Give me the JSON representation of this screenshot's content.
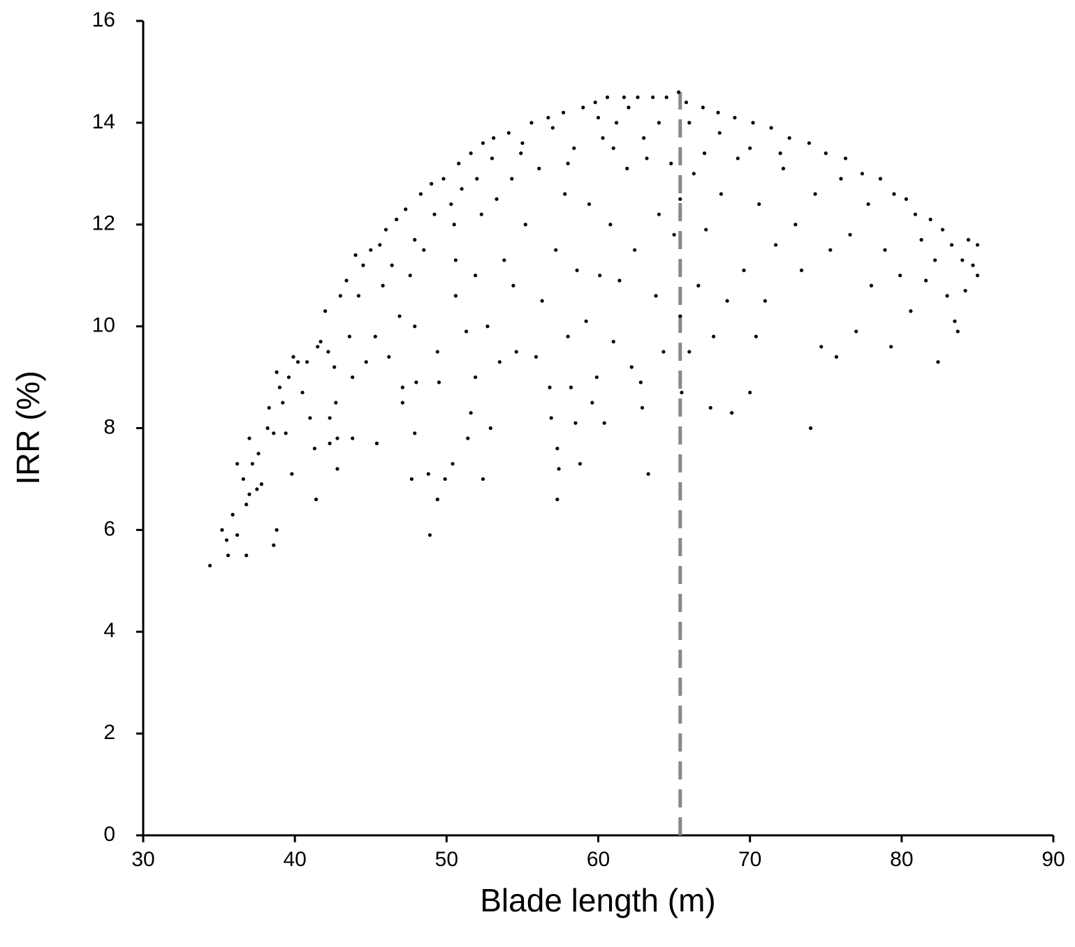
{
  "chart_data": {
    "type": "scatter",
    "xlabel": "Blade length (m)",
    "ylabel": "IRR (%)",
    "xlim": [
      30,
      90
    ],
    "xticks": [
      30,
      40,
      50,
      60,
      70,
      80,
      90
    ],
    "ylim": [
      0,
      16
    ],
    "yticks": [
      0,
      2,
      4,
      6,
      8,
      10,
      12,
      14,
      16
    ],
    "grid": false,
    "reference_line": {
      "x": 65.4,
      "y": [
        0,
        14.6
      ],
      "color": "#888888",
      "style": "dashed"
    },
    "series": [
      {
        "color": "#000000",
        "x": [
          34.4,
          35.2,
          35.5,
          35.6,
          35.9,
          36.2,
          36.2,
          36.6,
          36.8,
          36.8,
          37.0,
          37.0,
          37.2,
          37.5,
          37.6,
          37.8,
          38.2,
          38.3,
          38.6,
          38.6,
          38.8,
          38.8,
          39.0,
          39.2,
          39.4,
          39.6,
          39.8,
          39.9,
          40.2,
          40.5,
          40.8,
          41.0,
          41.3,
          41.4,
          41.5,
          41.7,
          42.0,
          42.2,
          42.3,
          42.3,
          42.6,
          42.7,
          42.8,
          42.8,
          43.0,
          43.4,
          43.6,
          43.8,
          43.8,
          44.0,
          44.2,
          44.5,
          44.7,
          45.0,
          45.3,
          45.4,
          45.6,
          45.8,
          46.0,
          46.2,
          46.4,
          46.7,
          46.9,
          47.1,
          47.1,
          47.3,
          47.6,
          47.7,
          47.9,
          47.9,
          47.9,
          48.0,
          48.3,
          48.5,
          48.8,
          48.9,
          49.0,
          49.2,
          49.4,
          49.4,
          49.5,
          49.8,
          49.9,
          50.3,
          50.4,
          50.5,
          50.6,
          50.6,
          50.8,
          51.0,
          51.3,
          51.4,
          51.6,
          51.6,
          51.9,
          51.9,
          52.3,
          52.4,
          52.4,
          52.7,
          52.9,
          53.1,
          53.3,
          53.5,
          53.8,
          54.1,
          54.3,
          54.4,
          54.6,
          54.9,
          55.2,
          55.6,
          55.9,
          56.1,
          56.3,
          56.7,
          56.8,
          56.9,
          57.2,
          57.3,
          57.3,
          57.4,
          57.7,
          57.8,
          58.0,
          58.2,
          58.4,
          58.5,
          58.6,
          58.8,
          59.0,
          59.2,
          59.4,
          59.6,
          59.8,
          59.9,
          60.1,
          60.3,
          60.4,
          60.6,
          60.8,
          61.0,
          61.2,
          61.4,
          61.7,
          61.9,
          62.2,
          62.4,
          62.6,
          62.8,
          62.9,
          63.2,
          63.3,
          63.6,
          63.8,
          64.0,
          64.3,
          64.5,
          64.8,
          65.0,
          65.3,
          65.4,
          65.4,
          65.5,
          65.8,
          66.0,
          66.3,
          66.6,
          66.9,
          67.1,
          67.4,
          67.6,
          67.9,
          68.1,
          68.5,
          68.8,
          69.0,
          69.2,
          69.6,
          70.0,
          70.2,
          70.4,
          70.6,
          71.0,
          71.4,
          71.7,
          72.2,
          72.6,
          73.0,
          73.4,
          73.9,
          74.0,
          74.3,
          74.7,
          75.0,
          75.3,
          75.7,
          76.0,
          76.3,
          76.6,
          77.0,
          77.4,
          77.8,
          78.0,
          78.6,
          78.9,
          79.3,
          79.5,
          79.9,
          80.3,
          80.6,
          80.9,
          81.3,
          81.6,
          81.9,
          82.2,
          82.4,
          82.7,
          83.0,
          83.3,
          83.5,
          83.7,
          84.0,
          84.2,
          84.4,
          84.7,
          85.0,
          85.0,
          55.0,
          57.0,
          60.0,
          62.0,
          64.0,
          66.0,
          68.0,
          70.0,
          58.0,
          61.0,
          63.0,
          67.0,
          72.0,
          53.0,
          52.0
        ],
        "y": [
          5.3,
          6.0,
          5.8,
          5.5,
          6.3,
          5.9,
          7.3,
          7.0,
          6.5,
          5.5,
          7.8,
          6.7,
          7.3,
          6.8,
          7.5,
          6.9,
          8.0,
          8.4,
          7.9,
          5.7,
          6.0,
          9.1,
          8.8,
          8.5,
          7.9,
          9.0,
          7.1,
          9.4,
          9.3,
          8.7,
          9.3,
          8.2,
          7.6,
          6.6,
          9.6,
          9.7,
          10.3,
          9.5,
          8.2,
          7.7,
          9.2,
          8.5,
          7.2,
          7.8,
          10.6,
          10.9,
          9.8,
          9.0,
          7.8,
          11.4,
          10.6,
          11.2,
          9.3,
          11.5,
          9.8,
          7.7,
          11.6,
          10.8,
          11.9,
          9.4,
          11.2,
          12.1,
          10.2,
          8.8,
          8.5,
          12.3,
          11.0,
          7.0,
          11.7,
          10.0,
          7.9,
          8.9,
          12.6,
          11.5,
          7.1,
          5.9,
          12.8,
          12.2,
          9.5,
          6.6,
          8.9,
          12.9,
          7.0,
          12.4,
          7.3,
          12.0,
          11.3,
          10.6,
          13.2,
          12.7,
          9.9,
          7.8,
          13.4,
          8.3,
          11.0,
          9.0,
          12.2,
          13.6,
          7.0,
          10.0,
          8.0,
          13.7,
          12.5,
          9.3,
          11.3,
          13.8,
          12.9,
          10.8,
          9.5,
          13.4,
          12.0,
          14.0,
          9.4,
          13.1,
          10.5,
          14.1,
          8.8,
          8.2,
          11.5,
          7.6,
          6.6,
          7.2,
          14.2,
          12.6,
          9.8,
          8.8,
          13.5,
          8.1,
          11.1,
          7.3,
          14.3,
          10.1,
          12.4,
          8.5,
          14.4,
          9.0,
          11.0,
          13.7,
          8.1,
          14.5,
          12.0,
          9.7,
          14.0,
          10.9,
          14.5,
          13.1,
          9.2,
          11.5,
          14.5,
          8.9,
          8.4,
          13.3,
          7.1,
          14.5,
          10.6,
          12.2,
          9.5,
          14.5,
          13.2,
          11.8,
          14.6,
          12.5,
          10.2,
          8.7,
          14.4,
          9.5,
          13.0,
          10.8,
          14.3,
          11.9,
          8.4,
          9.8,
          14.2,
          12.6,
          10.5,
          8.3,
          14.1,
          13.3,
          11.1,
          8.7,
          14.0,
          9.8,
          12.4,
          10.5,
          13.9,
          11.6,
          13.1,
          13.7,
          12.0,
          11.1,
          13.6,
          8.0,
          12.6,
          9.6,
          13.4,
          11.5,
          9.4,
          12.9,
          13.3,
          11.8,
          9.9,
          13.0,
          12.4,
          10.8,
          12.9,
          11.5,
          9.6,
          12.6,
          11.0,
          12.5,
          10.3,
          12.2,
          11.7,
          10.9,
          12.1,
          11.3,
          9.3,
          11.9,
          10.6,
          11.6,
          10.1,
          9.9,
          11.3,
          10.7,
          11.7,
          11.2,
          11.6,
          11.0,
          13.6,
          13.9,
          14.1,
          14.3,
          14.0,
          14.0,
          13.8,
          13.5,
          13.2,
          13.5,
          13.7,
          13.4,
          13.4,
          13.3,
          12.9
        ]
      }
    ]
  }
}
